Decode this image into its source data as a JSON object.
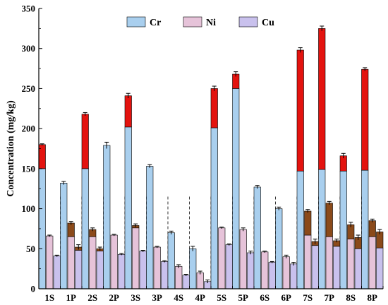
{
  "chart_data": {
    "type": "bar",
    "ylabel": "Concentration (mg/kg)",
    "xlabel": "",
    "ylim": [
      0,
      350
    ],
    "yticks": [
      "0",
      "50",
      "100",
      "150",
      "200",
      "250",
      "300",
      "350"
    ],
    "categories": [
      "1S",
      "1P",
      "2S",
      "2P",
      "3S",
      "3P",
      "4S",
      "4P",
      "5S",
      "5P",
      "6S",
      "6P",
      "7S",
      "7P",
      "8S",
      "8P"
    ],
    "legend_position": "top-center",
    "series": [
      {
        "name": "Cr",
        "color": "#a9cfee",
        "values": [
          150,
          132,
          150,
          179,
          202,
          153,
          70,
          50,
          201,
          250,
          127,
          100,
          147,
          149,
          147,
          148
        ],
        "errors": [
          1,
          2,
          1,
          4,
          2,
          2,
          2,
          3,
          1,
          1,
          2,
          2,
          1,
          1,
          1,
          1
        ],
        "total": [
          180,
          132,
          218,
          179,
          241,
          153,
          70,
          50,
          250,
          268,
          127,
          100,
          298,
          325,
          166,
          274
        ],
        "total_errors": [
          1,
          2,
          2,
          4,
          3,
          2,
          2,
          3,
          3,
          3,
          2,
          2,
          3,
          3,
          3,
          2
        ]
      },
      {
        "name": "Ni",
        "color": "#e6c3d9",
        "values": [
          66,
          65,
          65,
          67,
          76,
          52,
          28,
          20,
          76,
          74,
          46,
          40,
          67,
          65,
          62,
          65
        ],
        "errors": [
          1,
          2,
          2,
          1,
          2,
          1,
          2,
          2,
          1,
          2,
          1,
          2,
          2,
          2,
          3,
          2
        ],
        "total": [
          66,
          82,
          74,
          67,
          79,
          52,
          28,
          20,
          76,
          74,
          46,
          40,
          97,
          107,
          80,
          85
        ],
        "total_errors": [
          1,
          2,
          2,
          1,
          2,
          1,
          2,
          2,
          1,
          2,
          1,
          2,
          2,
          2,
          3,
          2
        ]
      },
      {
        "name": "Cu",
        "color": "#c9c1ed",
        "values": [
          41,
          48,
          47,
          43,
          47,
          34,
          17,
          9,
          55,
          45,
          33,
          31,
          54,
          53,
          50,
          51
        ],
        "errors": [
          1,
          2,
          2,
          1,
          1,
          1,
          1,
          2,
          1,
          2,
          1,
          2,
          2,
          2,
          2,
          2
        ],
        "total": [
          41,
          52,
          50,
          43,
          47,
          34,
          17,
          9,
          55,
          45,
          33,
          31,
          59,
          60,
          64,
          71
        ],
        "total_errors": [
          1,
          3,
          2,
          1,
          1,
          1,
          1,
          2,
          1,
          2,
          1,
          2,
          3,
          2,
          3,
          3
        ]
      }
    ],
    "overlay_color_cr": "#e3130f",
    "overlay_color_other": "#8b4a1a"
  }
}
